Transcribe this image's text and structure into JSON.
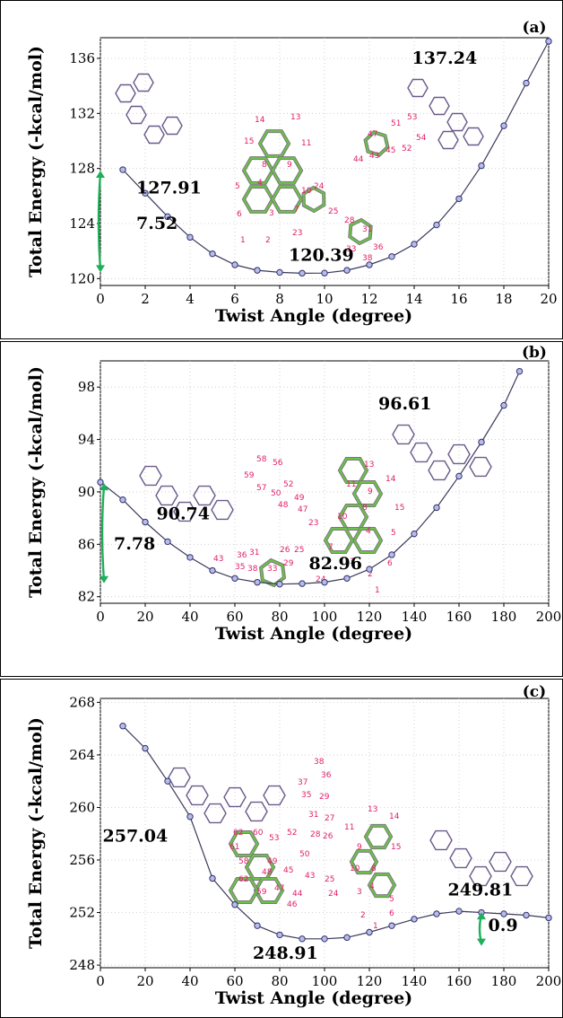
{
  "chart_data": [
    {
      "type": "line",
      "panel_label": "(a)",
      "xlabel": "Twist Angle (degree)",
      "ylabel": "Total Energy (-kcal/mol)",
      "xlim": [
        0,
        20
      ],
      "ylim": [
        119.5,
        137.5
      ],
      "xticks": [
        0,
        2,
        4,
        6,
        8,
        10,
        12,
        14,
        16,
        18,
        20
      ],
      "yticks": [
        120,
        124,
        128,
        132,
        136
      ],
      "x": [
        1,
        2,
        3,
        4,
        5,
        6,
        7,
        8,
        9,
        10,
        11,
        12,
        13,
        14,
        15,
        16,
        17,
        18,
        19,
        20
      ],
      "y": [
        127.91,
        126.2,
        124.5,
        123.0,
        121.8,
        121.0,
        120.6,
        120.45,
        120.39,
        120.4,
        120.6,
        121.0,
        121.6,
        122.5,
        123.9,
        125.8,
        128.2,
        131.1,
        134.2,
        137.24
      ],
      "annotations": [
        {
          "text": "137.24",
          "x": 13.9,
          "y": 135.6
        },
        {
          "text": "127.91",
          "x": 1.6,
          "y": 126.2
        },
        {
          "text": "7.52",
          "x": 1.6,
          "y": 123.6
        },
        {
          "text": "120.39",
          "x": 8.4,
          "y": 121.3
        }
      ],
      "arrow_label": "7.52"
    },
    {
      "type": "line",
      "panel_label": "(b)",
      "xlabel": "Twist Angle (degree)",
      "ylabel": "Total Energy (-kcal/mol)",
      "xlim": [
        0,
        200
      ],
      "ylim": [
        81.5,
        100
      ],
      "xticks": [
        0,
        20,
        40,
        60,
        80,
        100,
        120,
        140,
        160,
        180,
        200
      ],
      "yticks": [
        82,
        86,
        90,
        94,
        98
      ],
      "x": [
        0,
        10,
        20,
        30,
        40,
        50,
        60,
        70,
        80,
        90,
        100,
        110,
        120,
        130,
        140,
        150,
        160,
        170,
        180,
        187
      ],
      "y": [
        90.74,
        89.4,
        87.7,
        86.2,
        85.0,
        84.0,
        83.4,
        83.1,
        82.96,
        83.0,
        83.1,
        83.4,
        84.1,
        85.2,
        86.8,
        88.8,
        91.2,
        93.8,
        96.6,
        99.2
      ],
      "annotations": [
        {
          "text": "96.61",
          "x": 124,
          "y": 96.3
        },
        {
          "text": "90.74",
          "x": 25,
          "y": 87.9
        },
        {
          "text": "7.78",
          "x": 6,
          "y": 85.6
        },
        {
          "text": "82.96",
          "x": 93,
          "y": 84.1
        }
      ],
      "arrow_label": "7.78"
    },
    {
      "type": "line",
      "panel_label": "(c)",
      "xlabel": "Twist Angle (degree)",
      "ylabel": "Total Energy (-kcal/mol)",
      "xlim": [
        0,
        200
      ],
      "ylim": [
        247.8,
        268.3
      ],
      "xticks": [
        0,
        20,
        40,
        60,
        80,
        100,
        120,
        140,
        160,
        180,
        200
      ],
      "yticks": [
        248,
        252,
        256,
        260,
        264,
        268
      ],
      "x": [
        10,
        20,
        30,
        40,
        50,
        60,
        70,
        80,
        90,
        100,
        110,
        120,
        130,
        140,
        150,
        160,
        170,
        180,
        190,
        200
      ],
      "y": [
        266.2,
        264.5,
        262.0,
        259.3,
        254.6,
        252.6,
        251.0,
        250.3,
        250.0,
        250.0,
        250.1,
        250.5,
        251.0,
        251.5,
        251.9,
        252.1,
        252.0,
        251.9,
        251.8,
        251.6
      ],
      "annotations": [
        {
          "text": "257.04",
          "x": 1,
          "y": 257.4
        },
        {
          "text": "249.81",
          "x": 155,
          "y": 253.3
        },
        {
          "text": "248.91",
          "x": 68,
          "y": 248.5
        },
        {
          "text": "0.9",
          "x": 173,
          "y": 250.6
        }
      ],
      "arrow_label": "0.9"
    }
  ],
  "atom_labels": {
    "a": [
      "14",
      "13",
      "15",
      "11",
      "8",
      "9",
      "5",
      "4",
      "10",
      "24",
      "6",
      "3",
      "7",
      "25",
      "1",
      "2",
      "23",
      "47",
      "51",
      "53",
      "44",
      "43",
      "45",
      "52",
      "54",
      "28",
      "31",
      "33",
      "36",
      "38"
    ],
    "b": [
      "58",
      "56",
      "59",
      "57",
      "52",
      "50",
      "49",
      "48",
      "47",
      "13",
      "14",
      "11",
      "9",
      "15",
      "8",
      "23",
      "10",
      "4",
      "5",
      "43",
      "36",
      "31",
      "26",
      "25",
      "7",
      "35",
      "38",
      "33",
      "29",
      "24",
      "3",
      "6",
      "2",
      "1"
    ],
    "c": [
      "38",
      "37",
      "36",
      "35",
      "29",
      "31",
      "27",
      "13",
      "14",
      "11",
      "62",
      "60",
      "53",
      "52",
      "28",
      "26",
      "9",
      "15",
      "61",
      "50",
      "10",
      "8",
      "58",
      "49",
      "45",
      "48",
      "43",
      "25",
      "4",
      "62",
      "59",
      "47",
      "44",
      "24",
      "3",
      "5",
      "46",
      "2",
      "6",
      "1"
    ]
  },
  "colors": {
    "curve": "#3a3a5a",
    "marker_fill": "#b8bce8",
    "marker_stroke": "#303070",
    "plot_bg": "#ffffff",
    "grid": "#c8c8c8",
    "arrow": "#1fae5a",
    "atom_label": "#e0206a",
    "bond_green": "#6cc24a",
    "bond_gray": "#7a7a7a",
    "molecule_purple": "#6a5a8a"
  }
}
